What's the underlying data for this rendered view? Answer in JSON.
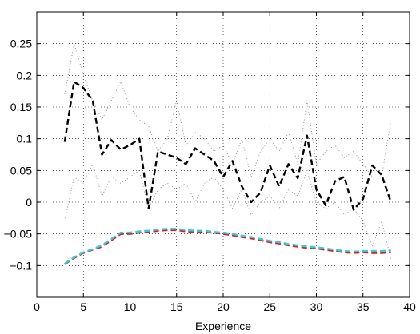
{
  "chart_data": {
    "type": "line",
    "title": "",
    "xlabel": "Experience",
    "ylabel": "",
    "xlim": [
      0,
      40
    ],
    "ylim": [
      -0.15,
      0.3
    ],
    "x_ticks": [
      0,
      5,
      10,
      15,
      20,
      25,
      30,
      35,
      40
    ],
    "y_ticks": [
      -0.1,
      -0.05,
      0,
      0.05,
      0.1,
      0.15,
      0.2,
      0.25
    ],
    "y_tick_labels": [
      "−0.1",
      "−0.05",
      "0",
      "0.05",
      "0.1",
      "0.15",
      "0.2",
      "0.25"
    ],
    "grid": true,
    "legend": "none",
    "x": [
      3,
      4,
      5,
      6,
      7,
      8,
      9,
      10,
      11,
      12,
      13,
      14,
      15,
      16,
      17,
      18,
      19,
      20,
      21,
      22,
      23,
      24,
      25,
      26,
      27,
      28,
      29,
      30,
      31,
      32,
      33,
      34,
      35,
      36,
      37,
      38
    ],
    "series": [
      {
        "style": "dotted",
        "color": "#888888",
        "values": [
          0.17,
          0.25,
          0.2,
          0.16,
          0.13,
          0.16,
          0.19,
          0.15,
          0.13,
          0.12,
          0.08,
          0.1,
          0.16,
          0.09,
          0.11,
          0.1,
          0.08,
          0.09,
          0.06,
          0.1,
          0.04,
          0.08,
          0.1,
          0.08,
          0.11,
          0.06,
          0.16,
          0.06,
          0.08,
          0.09,
          0.07,
          0.08,
          0.06,
          0.04,
          0.04,
          0.13
        ]
      },
      {
        "style": "dotted",
        "color": "#888888",
        "values": [
          -0.03,
          0.04,
          0.03,
          0.06,
          0.01,
          0.04,
          0.03,
          0.04,
          0.05,
          -0.01,
          0.02,
          0.03,
          0.02,
          0.03,
          0.0,
          0.03,
          0.04,
          0.02,
          -0.01,
          0.02,
          -0.02,
          0.0,
          0.01,
          -0.01,
          0.02,
          0.01,
          0.05,
          0.0,
          -0.01,
          0.0,
          -0.02,
          -0.01,
          -0.03,
          -0.07,
          -0.03,
          -0.09
        ]
      },
      {
        "style": "dashed",
        "color": "#000000",
        "values": [
          0.095,
          0.19,
          0.18,
          0.16,
          0.075,
          0.098,
          0.083,
          0.09,
          0.1,
          -0.01,
          0.08,
          0.075,
          0.07,
          0.06,
          0.085,
          0.075,
          0.065,
          0.04,
          0.065,
          0.025,
          0.0,
          0.015,
          0.058,
          0.025,
          0.06,
          0.038,
          0.105,
          0.02,
          -0.005,
          0.033,
          0.04,
          -0.012,
          0.005,
          0.058,
          0.043,
          0.0
        ]
      },
      {
        "style": "dashed",
        "color": "#e31a1c",
        "values": [
          -0.098,
          -0.088,
          -0.08,
          -0.075,
          -0.07,
          -0.06,
          -0.05,
          -0.05,
          -0.048,
          -0.047,
          -0.045,
          -0.044,
          -0.044,
          -0.046,
          -0.047,
          -0.047,
          -0.048,
          -0.05,
          -0.052,
          -0.055,
          -0.057,
          -0.06,
          -0.063,
          -0.065,
          -0.068,
          -0.07,
          -0.072,
          -0.073,
          -0.075,
          -0.077,
          -0.079,
          -0.08,
          -0.079,
          -0.08,
          -0.08,
          -0.079
        ]
      },
      {
        "style": "dashed",
        "color": "#33ccdd",
        "values": [
          -0.097,
          -0.087,
          -0.079,
          -0.074,
          -0.068,
          -0.058,
          -0.048,
          -0.048,
          -0.046,
          -0.045,
          -0.043,
          -0.042,
          -0.042,
          -0.044,
          -0.045,
          -0.045,
          -0.047,
          -0.048,
          -0.05,
          -0.053,
          -0.055,
          -0.058,
          -0.061,
          -0.063,
          -0.066,
          -0.068,
          -0.07,
          -0.071,
          -0.073,
          -0.075,
          -0.077,
          -0.078,
          -0.077,
          -0.077,
          -0.077,
          -0.076
        ]
      }
    ]
  }
}
